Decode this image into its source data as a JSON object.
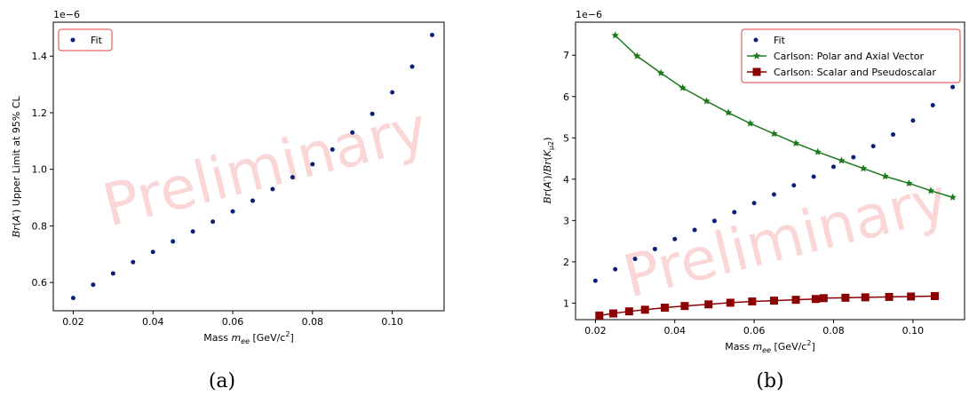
{
  "chart_data": [
    {
      "type": "scatter",
      "panel_caption": "(a)",
      "xlabel": "Mass m_ee [GeV/c^2]",
      "ylabel": "Br(A') Upper Limit at 95% CL",
      "y_exponent_label": "1e−6",
      "watermark": "Preliminary",
      "xlim": [
        0.015,
        0.113
      ],
      "ylim": [
        0.5,
        1.52
      ],
      "xticks": [
        "0.02",
        "0.04",
        "0.06",
        "0.08",
        "0.10"
      ],
      "xtick_values": [
        0.02,
        0.04,
        0.06,
        0.08,
        0.1
      ],
      "yticks": [
        "0.6",
        "0.8",
        "1.0",
        "1.2",
        "1.4"
      ],
      "ytick_values": [
        0.6,
        0.8,
        1.0,
        1.2,
        1.4
      ],
      "legend_position": "upper-left",
      "series": [
        {
          "name": "Fit",
          "style": "points",
          "color": "#0b1f7a",
          "x": [
            0.02,
            0.025,
            0.03,
            0.035,
            0.04,
            0.045,
            0.05,
            0.055,
            0.06,
            0.065,
            0.07,
            0.075,
            0.08,
            0.085,
            0.09,
            0.095,
            0.1,
            0.105,
            0.11
          ],
          "y": [
            0.545,
            0.592,
            0.632,
            0.672,
            0.708,
            0.745,
            0.78,
            0.815,
            0.851,
            0.889,
            0.93,
            0.972,
            1.018,
            1.07,
            1.13,
            1.196,
            1.272,
            1.363,
            1.475
          ]
        }
      ]
    },
    {
      "type": "line",
      "panel_caption": "(b)",
      "xlabel": "Mass m_ee [GeV/c^2]",
      "ylabel": "Br(A')/Br(K_μ2)",
      "y_exponent_label": "1e−6",
      "watermark": "Preliminary",
      "xlim": [
        0.015,
        0.113
      ],
      "ylim": [
        0.6,
        7.8
      ],
      "xticks": [
        "0.02",
        "0.04",
        "0.06",
        "0.08",
        "0.10"
      ],
      "xtick_values": [
        0.02,
        0.04,
        0.06,
        0.08,
        0.1
      ],
      "yticks": [
        "1",
        "2",
        "3",
        "4",
        "5",
        "6",
        "7"
      ],
      "ytick_values": [
        1,
        2,
        3,
        4,
        5,
        6,
        7
      ],
      "legend_position": "upper-right",
      "series": [
        {
          "name": "Fit",
          "style": "points",
          "color": "#0b1f7a",
          "x": [
            0.02,
            0.025,
            0.03,
            0.035,
            0.04,
            0.045,
            0.05,
            0.055,
            0.06,
            0.065,
            0.07,
            0.075,
            0.08,
            0.085,
            0.09,
            0.095,
            0.1,
            0.105,
            0.11
          ],
          "y": [
            1.54,
            1.82,
            2.07,
            2.31,
            2.55,
            2.77,
            2.99,
            3.2,
            3.42,
            3.63,
            3.85,
            4.06,
            4.3,
            4.53,
            4.8,
            5.08,
            5.42,
            5.79,
            6.23
          ]
        },
        {
          "name": "Carlson: Polar and Axial Vector",
          "style": "line-star",
          "color": "#1a7a1a",
          "x": [
            0.025,
            0.0305,
            0.0365,
            0.042,
            0.048,
            0.0535,
            0.059,
            0.065,
            0.0705,
            0.076,
            0.082,
            0.0875,
            0.093,
            0.099,
            0.1045,
            0.11
          ],
          "y": [
            7.48,
            6.98,
            6.57,
            6.21,
            5.89,
            5.61,
            5.35,
            5.1,
            4.87,
            4.66,
            4.45,
            4.26,
            4.07,
            3.9,
            3.72,
            3.56
          ]
        },
        {
          "name": "Carlson: Scalar and Pseudoscalar",
          "style": "line-square",
          "color": "#8b0000",
          "x": [
            0.021,
            0.0245,
            0.0285,
            0.0325,
            0.0375,
            0.0425,
            0.0485,
            0.054,
            0.0595,
            0.065,
            0.0705,
            0.0755,
            0.0775,
            0.083,
            0.088,
            0.094,
            0.0995,
            0.1055
          ],
          "y": [
            0.7,
            0.75,
            0.8,
            0.84,
            0.89,
            0.93,
            0.97,
            1.01,
            1.04,
            1.06,
            1.08,
            1.1,
            1.12,
            1.13,
            1.14,
            1.15,
            1.16,
            1.17
          ]
        }
      ]
    }
  ]
}
